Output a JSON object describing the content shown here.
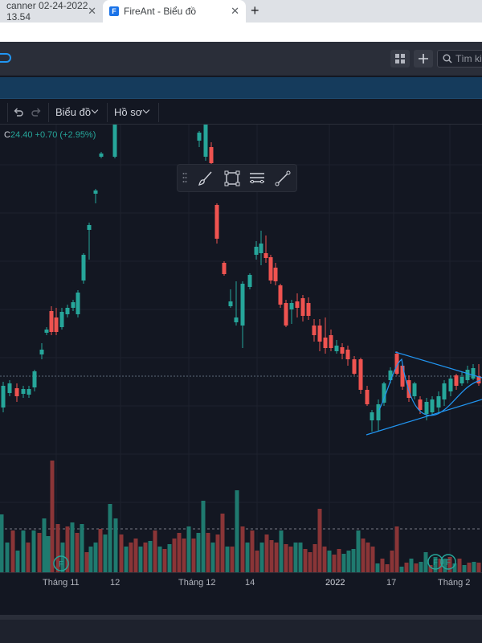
{
  "browser": {
    "tabs": [
      {
        "title": "canner 02-24-2022 13.54",
        "active": false
      },
      {
        "title": "FireAnt - Biểu đồ",
        "active": true
      }
    ],
    "favicon_letter": "F",
    "new_tab_symbol": "+"
  },
  "header": {
    "search_placeholder": "Tìm ki"
  },
  "toolbar": {
    "chart_menu": "Biểu đồ",
    "profile_menu": "Hồ sơ"
  },
  "legend": {
    "close_prefix": "C",
    "close_value": "24.40",
    "change": "+0.70 (+2.95%)"
  },
  "xaxis": {
    "labels": [
      "Tháng 11",
      "12",
      "Tháng 12",
      "14",
      "2022",
      "17",
      "Tháng 2"
    ]
  },
  "markers": [
    "F",
    "F",
    "F"
  ],
  "colors": {
    "up": "#26a69a",
    "down": "#ef5350",
    "up_volume": "#1f7a6f",
    "down_volume": "#8a3537",
    "trendline": "#2196f3",
    "background": "#131722"
  },
  "chart_data": {
    "type": "candlestick",
    "price_range_note": "",
    "last_close": 24.4,
    "change": 0.7,
    "change_pct": 2.95,
    "x_ticks": [
      "Tháng 11",
      "12",
      "Tháng 12",
      "14",
      "2022",
      "17",
      "Tháng 2"
    ]
  }
}
